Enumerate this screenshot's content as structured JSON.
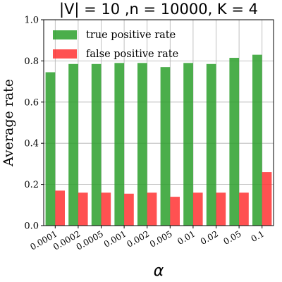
{
  "chart_data": {
    "type": "bar",
    "title": "|V| = 10 ,n = 10000, K = 4",
    "xlabel": "α",
    "ylabel": "Average rate",
    "ylim": [
      0,
      1.0
    ],
    "yticks": [
      "0.0",
      "0.2",
      "0.4",
      "0.6",
      "0.8",
      "1.0"
    ],
    "categories": [
      "0.0001",
      "0.0002",
      "0.0005",
      "0.001",
      "0.002",
      "0.005",
      "0.01",
      "0.02",
      "0.05",
      "0.1"
    ],
    "series": [
      {
        "name": "true positive rate",
        "color": "#2ca02c",
        "values": [
          0.745,
          0.785,
          0.785,
          0.79,
          0.79,
          0.77,
          0.79,
          0.785,
          0.815,
          0.83
        ]
      },
      {
        "name": "false positive rate",
        "color": "#ff3333",
        "values": [
          0.17,
          0.16,
          0.16,
          0.155,
          0.16,
          0.14,
          0.16,
          0.16,
          0.16,
          0.26
        ]
      }
    ],
    "grid": true,
    "legend_position": "top-left"
  }
}
